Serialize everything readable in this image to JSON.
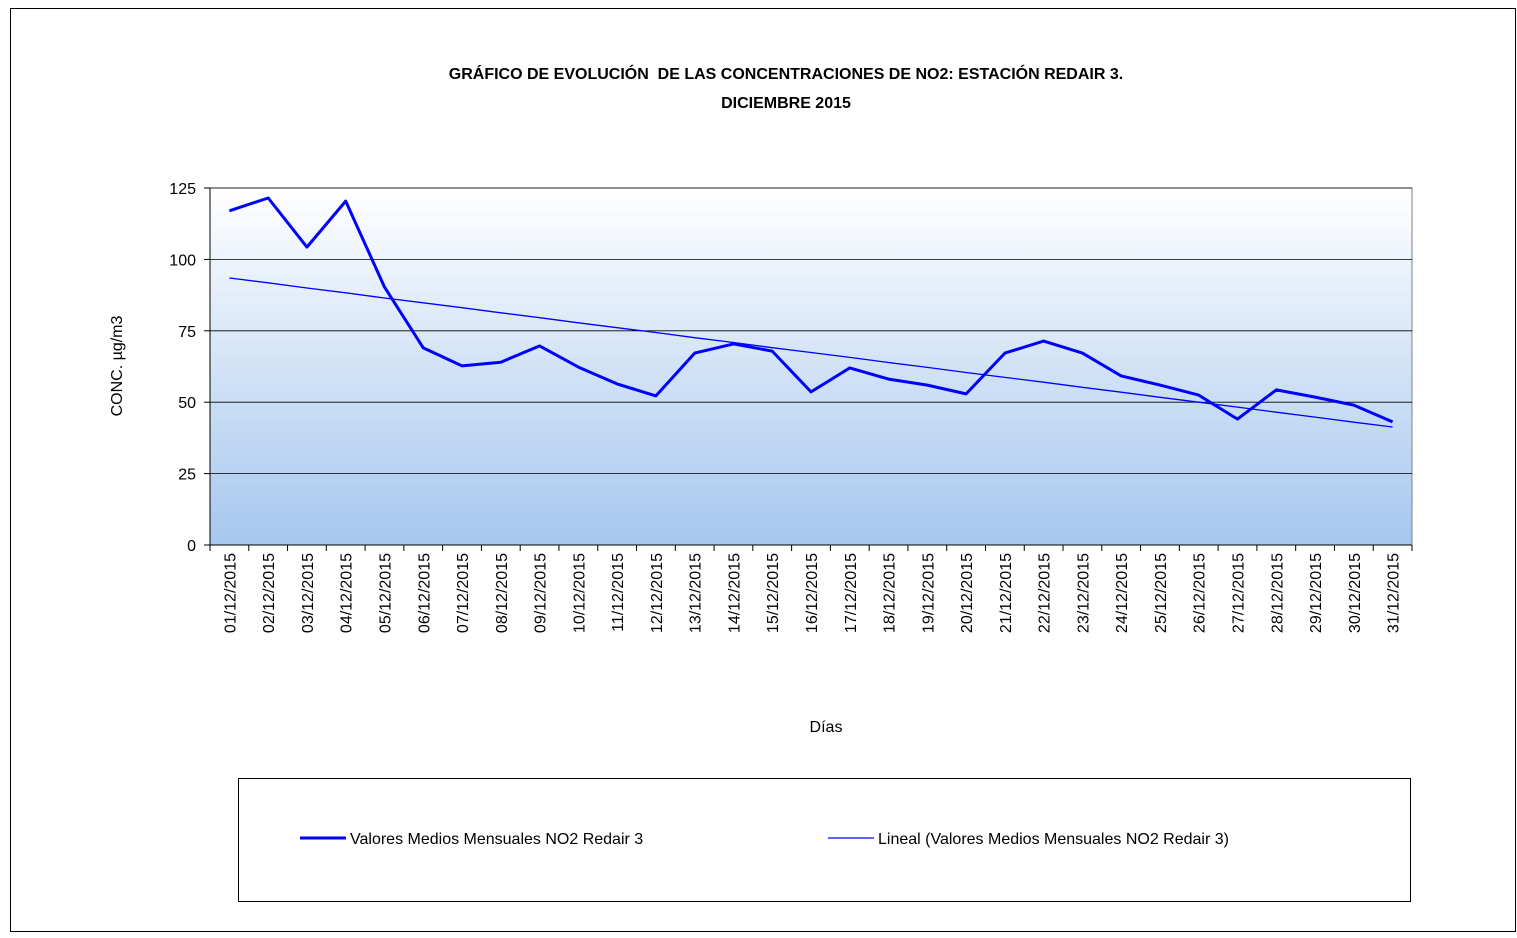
{
  "chart_data": {
    "type": "line",
    "title": "GRÁFICO DE EVOLUCIÓN  DE LAS CONCENTRACIONES DE NO2: ESTACIÓN REDAIR 3.",
    "subtitle": "DICIEMBRE 2015",
    "x_label": "Días",
    "y_label": "CONC. µg/m3",
    "categories": [
      "01/12/2015",
      "02/12/2015",
      "03/12/2015",
      "04/12/2015",
      "05/12/2015",
      "06/12/2015",
      "07/12/2015",
      "08/12/2015",
      "09/12/2015",
      "10/12/2015",
      "11/12/2015",
      "12/12/2015",
      "13/12/2015",
      "14/12/2015",
      "15/12/2015",
      "16/12/2015",
      "17/12/2015",
      "18/12/2015",
      "19/12/2015",
      "20/12/2015",
      "21/12/2015",
      "22/12/2015",
      "23/12/2015",
      "24/12/2015",
      "25/12/2015",
      "26/12/2015",
      "27/12/2015",
      "28/12/2015",
      "29/12/2015",
      "30/12/2015",
      "31/12/2015"
    ],
    "series": [
      {
        "name": "Valores Medios Mensuales NO2 Redair 3",
        "color": "#0000ff",
        "line_width": 3,
        "values": [
          117,
          121.5,
          104.3,
          120.4,
          90.3,
          69,
          62.7,
          64,
          69.7,
          62.3,
          56.4,
          52.2,
          67.2,
          70.4,
          67.9,
          53.6,
          62,
          58.1,
          56,
          52.9,
          67.2,
          71.4,
          67.2,
          59.2,
          56,
          52.5,
          44.1,
          54.3,
          51.8,
          49,
          43.1
        ]
      },
      {
        "name": "Lineal (Valores Medios Mensuales NO2 Redair 3)",
        "color": "#0000ff",
        "line_width": 1.3,
        "values": [
          93.5,
          91.8,
          90.0,
          88.3,
          86.5,
          84.8,
          83.1,
          81.3,
          79.6,
          77.8,
          76.1,
          74.4,
          72.6,
          70.9,
          69.1,
          67.4,
          65.7,
          63.9,
          62.2,
          60.4,
          58.7,
          57.0,
          55.2,
          53.5,
          51.7,
          50.0,
          48.3,
          46.5,
          44.8,
          43.0,
          41.3
        ]
      }
    ],
    "ylim": [
      0,
      125
    ],
    "yticks": [
      0,
      25,
      50,
      75,
      100,
      125
    ],
    "grid": true
  }
}
